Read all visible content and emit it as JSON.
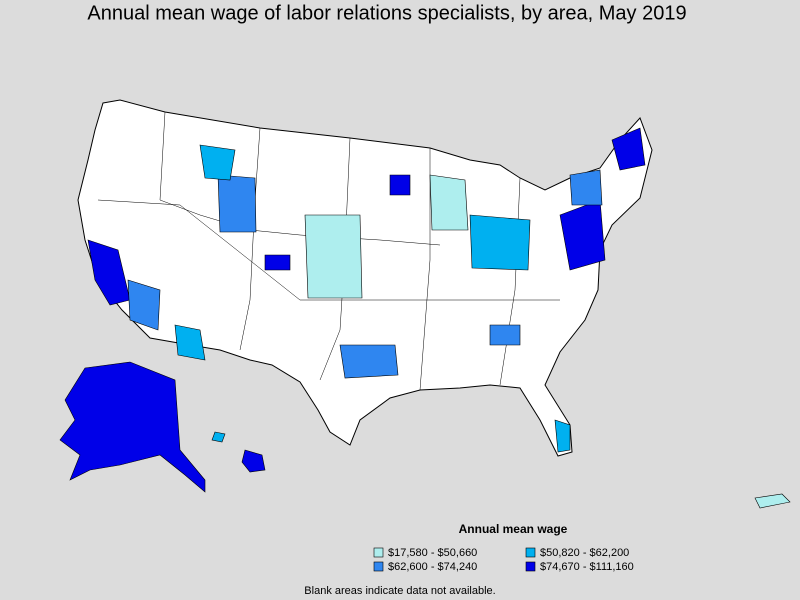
{
  "title": "Annual mean wage of labor relations specialists, by area, May 2019",
  "legend": {
    "title": "Annual mean wage",
    "items": [
      {
        "label": "$17,580 - $50,660",
        "color": "#aeeeee"
      },
      {
        "label": "$50,820 - $62,200",
        "color": "#00b0f0"
      },
      {
        "label": "$62,600 - $74,240",
        "color": "#2f86f0"
      },
      {
        "label": "$74,670 - $111,160",
        "color": "#0000e8"
      }
    ]
  },
  "footnote": "Blank areas indicate data not available."
}
